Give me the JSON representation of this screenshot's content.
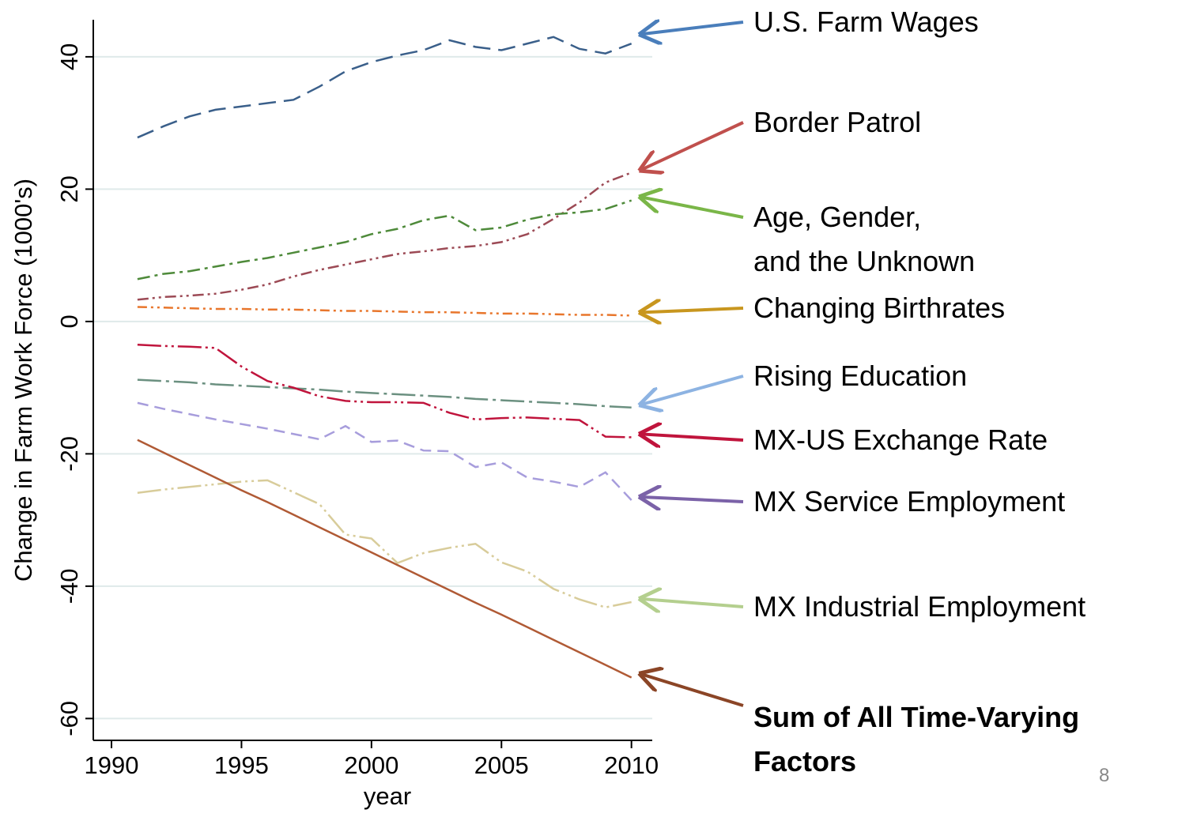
{
  "chart_data": {
    "type": "line",
    "x_label": "year",
    "y_label": "Change in Farm Work Force (1000's)",
    "x": [
      1991,
      1992,
      1993,
      1994,
      1995,
      1996,
      1997,
      1998,
      1999,
      2000,
      2001,
      2002,
      2003,
      2004,
      2005,
      2006,
      2007,
      2008,
      2009,
      2010
    ],
    "xlim": [
      1989.3,
      2010.8
    ],
    "xticks": [
      1990,
      1995,
      2000,
      2005,
      2010
    ],
    "ylim": [
      -63.3,
      45.6
    ],
    "yticks": [
      -60,
      -40,
      -20,
      0,
      20,
      40
    ],
    "grid": true,
    "page_number": "8",
    "series": [
      {
        "name": "U.S. Farm Wages",
        "color": "#3a5f8a",
        "dash": "22,10",
        "arrow_color": "#4a7ebb",
        "values": [
          27.8,
          29.5,
          31,
          32,
          32.5,
          33,
          33.5,
          35.5,
          37.8,
          39.2,
          40.2,
          41,
          42.5,
          41.5,
          41,
          42,
          43,
          41.2,
          40.5,
          42
        ]
      },
      {
        "name": "Border Patrol",
        "color": "#9c4a55",
        "dash": "14,5,3,5,3,5",
        "arrow_color": "#c0504d",
        "values": [
          3.3,
          3.7,
          3.9,
          4.2,
          4.8,
          5.6,
          6.8,
          7.8,
          8.6,
          9.4,
          10.2,
          10.6,
          11.1,
          11.4,
          12,
          13.2,
          15.5,
          18,
          21,
          22.5
        ]
      },
      {
        "name": "Age, Gender,\nand the Unknown",
        "color": "#4e8a3a",
        "dash": "16,6,4,6",
        "arrow_color": "#7ab648",
        "values": [
          6.4,
          7.2,
          7.6,
          8.3,
          9,
          9.6,
          10.4,
          11.2,
          12,
          13.2,
          14,
          15.3,
          16,
          13.8,
          14.2,
          15.4,
          16.2,
          16.5,
          17,
          18.3
        ]
      },
      {
        "name": "Changing Birthrates",
        "color": "#e8762c",
        "dash": "12,5,3,5,3,5",
        "arrow_color": "#c8961e",
        "values": [
          2.2,
          2.1,
          2.0,
          1.9,
          1.9,
          1.8,
          1.8,
          1.7,
          1.6,
          1.6,
          1.5,
          1.4,
          1.4,
          1.3,
          1.2,
          1.2,
          1.1,
          1.0,
          1.0,
          0.9
        ]
      },
      {
        "name": "Rising Education",
        "color": "#6b9080",
        "dash": "30,6,4,6",
        "arrow_color": "#8db3e2",
        "values": [
          -8.8,
          -9.0,
          -9.2,
          -9.5,
          -9.7,
          -9.9,
          -10.1,
          -10.3,
          -10.6,
          -10.8,
          -11.0,
          -11.2,
          -11.4,
          -11.7,
          -11.9,
          -12.1,
          -12.3,
          -12.5,
          -12.8,
          -13.0
        ]
      },
      {
        "name": "MX-US Exchange Rate",
        "color": "#c0143c",
        "dash": "30,5,3,5,3,5",
        "arrow_color": "#c0143c",
        "values": [
          -3.5,
          -3.7,
          -3.8,
          -4.0,
          -6.8,
          -9.0,
          -10.0,
          -11.3,
          -12.0,
          -12.2,
          -12.2,
          -12.3,
          -13.8,
          -14.8,
          -14.6,
          -14.5,
          -14.7,
          -14.9,
          -17.4,
          -17.5
        ]
      },
      {
        "name": "MX Service Employment",
        "color": "#a79ddc",
        "dash": "14,8",
        "arrow_color": "#7b62a8",
        "values": [
          -12.3,
          -13.2,
          -14,
          -14.8,
          -15.5,
          -16.2,
          -17,
          -17.8,
          -15.8,
          -18.2,
          -18,
          -19.5,
          -19.6,
          -22,
          -21.3,
          -23.6,
          -24.2,
          -25,
          -22.8,
          -27
        ]
      },
      {
        "name": "MX Industrial Employment",
        "color": "#d8cc9a",
        "dash": "30,5,3,5,3,5",
        "arrow_color": "#b4cf8e",
        "values": [
          -25.9,
          -25.4,
          -25,
          -24.6,
          -24.2,
          -24,
          -25.8,
          -27.6,
          -32.2,
          -32.8,
          -36.5,
          -35,
          -34.2,
          -33.6,
          -36.4,
          -37.8,
          -40.4,
          -42,
          -43.2,
          -42.4
        ]
      },
      {
        "name": "Sum of All Time-Varying\nFactors",
        "color": "#b05a35",
        "dash": "none",
        "arrow_color": "#8b4526",
        "bold": true,
        "values": [
          -17.9,
          -19.8,
          -21.7,
          -23.6,
          -25.5,
          -27.3,
          -29.2,
          -31.1,
          -33.0,
          -34.9,
          -36.8,
          -38.7,
          -40.6,
          -42.5,
          -44.3,
          -46.2,
          -48.1,
          -50.0,
          -51.9,
          -53.8
        ]
      }
    ]
  }
}
